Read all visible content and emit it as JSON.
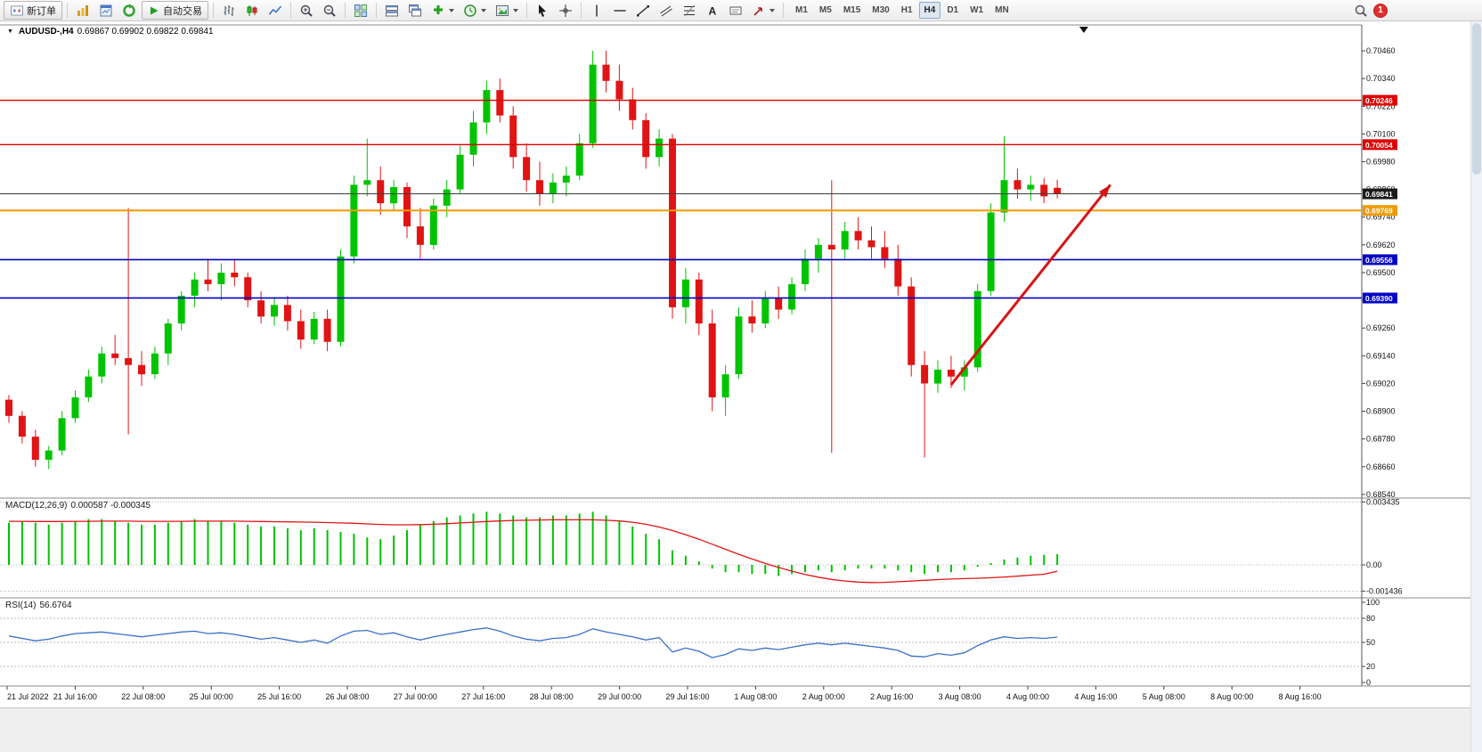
{
  "toolbar": {
    "new_order_label": "新订单",
    "autotrading_label": "自动交易",
    "text_tool_glyph": "A",
    "timeframes": [
      "M1",
      "M5",
      "M15",
      "M30",
      "H1",
      "H4",
      "D1",
      "W1",
      "MN"
    ],
    "active_timeframe": "H4",
    "notification_count": "1"
  },
  "chart": {
    "dropdown_glyph": "▼",
    "symbol_period": "AUDUSD-,H4",
    "ohlc": "0.69867 0.69902 0.69822 0.69841"
  },
  "chart_data": [
    {
      "type": "candlestick",
      "title": "AUDUSD-,H4",
      "ohlc_current": [
        0.69867,
        0.69902,
        0.69822,
        0.69841
      ],
      "ylim": [
        0.68528,
        0.70572
      ],
      "y_axis": [
        "0.70460",
        "0.70340",
        "0.70220",
        "0.70100",
        "0.69980",
        "0.69860",
        "0.69740",
        "0.69620",
        "0.69500",
        "0.69380",
        "0.69260",
        "0.69140",
        "0.69020",
        "0.68900",
        "0.68780",
        "0.68660",
        "0.68540"
      ],
      "time_labels": [
        "21 Jul 2022",
        "21 Jul 16:00",
        "22 Jul 08:00",
        "25 Jul 00:00",
        "25 Jul 16:00",
        "26 Jul 08:00",
        "27 Jul 00:00",
        "27 Jul 16:00",
        "28 Jul 08:00",
        "29 Jul 00:00",
        "29 Jul 16:00",
        "1 Aug 08:00",
        "2 Aug 00:00",
        "2 Aug 16:00",
        "3 Aug 08:00",
        "4 Aug 00:00",
        "4 Aug 16:00",
        "5 Aug 08:00",
        "8 Aug 00:00",
        "8 Aug 16:00"
      ],
      "colors": {
        "bull": "#00c300",
        "bear": "#e01414"
      },
      "candles": [
        [
          0.6895,
          0.6897,
          0.6885,
          0.6888
        ],
        [
          0.6888,
          0.689,
          0.6876,
          0.6879
        ],
        [
          0.6879,
          0.6882,
          0.6866,
          0.6869
        ],
        [
          0.6869,
          0.6875,
          0.6865,
          0.6873
        ],
        [
          0.6873,
          0.689,
          0.6871,
          0.6887
        ],
        [
          0.6887,
          0.6899,
          0.6885,
          0.6896
        ],
        [
          0.6896,
          0.6908,
          0.6894,
          0.6905
        ],
        [
          0.6905,
          0.6918,
          0.6902,
          0.6915
        ],
        [
          0.6915,
          0.6923,
          0.691,
          0.6913
        ],
        [
          0.6913,
          0.6978,
          0.688,
          0.691
        ],
        [
          0.691,
          0.6916,
          0.6901,
          0.6906
        ],
        [
          0.6906,
          0.6918,
          0.6904,
          0.6915
        ],
        [
          0.6915,
          0.693,
          0.691,
          0.6928
        ],
        [
          0.6928,
          0.6942,
          0.6925,
          0.694
        ],
        [
          0.694,
          0.695,
          0.6935,
          0.6947
        ],
        [
          0.6947,
          0.6956,
          0.6942,
          0.6945
        ],
        [
          0.6945,
          0.6954,
          0.6938,
          0.695
        ],
        [
          0.695,
          0.6956,
          0.6944,
          0.6948
        ],
        [
          0.6948,
          0.695,
          0.6935,
          0.6938
        ],
        [
          0.6938,
          0.6942,
          0.6928,
          0.6931
        ],
        [
          0.6931,
          0.6939,
          0.6927,
          0.6936
        ],
        [
          0.6936,
          0.694,
          0.6925,
          0.6929
        ],
        [
          0.6929,
          0.6934,
          0.6917,
          0.6921
        ],
        [
          0.6921,
          0.6933,
          0.6919,
          0.693
        ],
        [
          0.693,
          0.6934,
          0.6916,
          0.692
        ],
        [
          0.692,
          0.696,
          0.6918,
          0.6957
        ],
        [
          0.6957,
          0.6992,
          0.6954,
          0.6988
        ],
        [
          0.6988,
          0.7008,
          0.6983,
          0.699
        ],
        [
          0.699,
          0.6996,
          0.6975,
          0.698
        ],
        [
          0.698,
          0.699,
          0.6977,
          0.6987
        ],
        [
          0.6987,
          0.6989,
          0.6965,
          0.697
        ],
        [
          0.697,
          0.6978,
          0.6956,
          0.6962
        ],
        [
          0.6962,
          0.6982,
          0.696,
          0.6979
        ],
        [
          0.6979,
          0.699,
          0.6974,
          0.6986
        ],
        [
          0.6986,
          0.7005,
          0.6984,
          0.7001
        ],
        [
          0.7001,
          0.702,
          0.6996,
          0.7015
        ],
        [
          0.7015,
          0.7033,
          0.701,
          0.7029
        ],
        [
          0.7029,
          0.7034,
          0.7015,
          0.7018
        ],
        [
          0.7018,
          0.7022,
          0.6995,
          0.7
        ],
        [
          0.7,
          0.7006,
          0.6985,
          0.699
        ],
        [
          0.699,
          0.6998,
          0.6979,
          0.6984
        ],
        [
          0.6984,
          0.6993,
          0.698,
          0.6989
        ],
        [
          0.6989,
          0.6996,
          0.6983,
          0.6992
        ],
        [
          0.6992,
          0.701,
          0.699,
          0.7006
        ],
        [
          0.7006,
          0.7046,
          0.7004,
          0.704
        ],
        [
          0.704,
          0.7046,
          0.7028,
          0.7033
        ],
        [
          0.7033,
          0.704,
          0.702,
          0.7025
        ],
        [
          0.7025,
          0.703,
          0.7012,
          0.7016
        ],
        [
          0.7016,
          0.7019,
          0.6995,
          0.7
        ],
        [
          0.7,
          0.7012,
          0.6996,
          0.7008
        ],
        [
          0.7008,
          0.701,
          0.693,
          0.6935
        ],
        [
          0.6935,
          0.6952,
          0.6928,
          0.6947
        ],
        [
          0.6947,
          0.695,
          0.6923,
          0.6928
        ],
        [
          0.6928,
          0.6934,
          0.689,
          0.6896
        ],
        [
          0.6896,
          0.691,
          0.6888,
          0.6906
        ],
        [
          0.6906,
          0.6935,
          0.6904,
          0.6931
        ],
        [
          0.6931,
          0.6938,
          0.6924,
          0.6928
        ],
        [
          0.6928,
          0.6942,
          0.6926,
          0.6939
        ],
        [
          0.6939,
          0.6944,
          0.693,
          0.6934
        ],
        [
          0.6934,
          0.6948,
          0.6932,
          0.6945
        ],
        [
          0.6945,
          0.696,
          0.6942,
          0.6956
        ],
        [
          0.6956,
          0.6965,
          0.695,
          0.6962
        ],
        [
          0.6962,
          0.699,
          0.6872,
          0.696
        ],
        [
          0.696,
          0.6972,
          0.6956,
          0.6968
        ],
        [
          0.6968,
          0.6974,
          0.696,
          0.6964
        ],
        [
          0.6964,
          0.697,
          0.6956,
          0.6961
        ],
        [
          0.6961,
          0.6968,
          0.6952,
          0.6956
        ],
        [
          0.6956,
          0.6962,
          0.694,
          0.6944
        ],
        [
          0.6944,
          0.6948,
          0.6905,
          0.691
        ],
        [
          0.691,
          0.6916,
          0.687,
          0.6902
        ],
        [
          0.6902,
          0.6912,
          0.6898,
          0.6908
        ],
        [
          0.6908,
          0.6914,
          0.69,
          0.6905
        ],
        [
          0.6905,
          0.6912,
          0.6899,
          0.6909
        ],
        [
          0.6909,
          0.6945,
          0.6907,
          0.6942
        ],
        [
          0.6942,
          0.698,
          0.694,
          0.6976
        ],
        [
          0.6976,
          0.7009,
          0.6972,
          0.699
        ],
        [
          0.699,
          0.6995,
          0.6982,
          0.6986
        ],
        [
          0.6986,
          0.6992,
          0.6981,
          0.6988
        ],
        [
          0.6988,
          0.6991,
          0.698,
          0.6983
        ],
        [
          0.69867,
          0.69902,
          0.69822,
          0.69841
        ]
      ],
      "hlines": [
        {
          "price": 0.70246,
          "color": "#e00000",
          "width": 1.4,
          "label": "0.70246",
          "label_bg": "#e00000"
        },
        {
          "price": 0.70054,
          "color": "#e00000",
          "width": 1.4,
          "label": "0.70054",
          "label_bg": "#e00000"
        },
        {
          "price": 0.69841,
          "color": "#3c3c3c",
          "width": 1,
          "label": "0.69841",
          "label_bg": "#1a1a1a"
        },
        {
          "price": 0.69769,
          "color": "#ef9b00",
          "width": 2,
          "label": "0.69769",
          "label_bg": "#ef9b00"
        },
        {
          "price": 0.69556,
          "color": "#0000c8",
          "width": 1.6,
          "label": "0.69556",
          "label_bg": "#0000c8"
        },
        {
          "price": 0.6939,
          "color": "#0000c8",
          "width": 1.6,
          "label": "0.69390",
          "label_bg": "#0000c8"
        }
      ],
      "arrow": {
        "from_index": 71,
        "from_price": 0.69014,
        "to_index": 83,
        "to_price": 0.6988,
        "color": "#d61515"
      },
      "shift_marker_index": 81
    },
    {
      "type": "bar",
      "name": "MACD(12,26,9)",
      "values_text": "0.000587 -0.000345",
      "ylim": [
        -0.00175,
        0.0036
      ],
      "axis": [
        {
          "label": "0.003435",
          "value": 0.003435
        },
        {
          "label": "0.00",
          "value": 0
        },
        {
          "label": "-0.001436",
          "value": -0.001436
        }
      ],
      "colors": {
        "histogram": "#00c300",
        "signal": "#e01414"
      },
      "histogram": [
        0.0023,
        0.0024,
        0.0023,
        0.0022,
        0.0023,
        0.0024,
        0.0025,
        0.0025,
        0.0024,
        0.0023,
        0.0022,
        0.0022,
        0.0023,
        0.0024,
        0.0025,
        0.0024,
        0.0024,
        0.0023,
        0.0022,
        0.0021,
        0.0021,
        0.002,
        0.0019,
        0.002,
        0.0019,
        0.0018,
        0.0017,
        0.0015,
        0.0014,
        0.0016,
        0.0019,
        0.0022,
        0.0024,
        0.0026,
        0.0027,
        0.0028,
        0.0029,
        0.0028,
        0.0027,
        0.0026,
        0.0026,
        0.0027,
        0.0027,
        0.0028,
        0.0029,
        0.0027,
        0.0024,
        0.0021,
        0.0017,
        0.0014,
        0.0008,
        0.0005,
        0.0002,
        -0.0002,
        -0.0004,
        -0.0004,
        -0.0005,
        -0.0005,
        -0.0006,
        -0.0005,
        -0.0004,
        -0.0003,
        -0.0004,
        -0.0003,
        -0.0002,
        -0.0002,
        -0.0002,
        -0.0003,
        -0.0004,
        -0.0005,
        -0.0004,
        -0.0004,
        -0.0003,
        -0.0001,
        0.0001,
        0.0003,
        0.0004,
        0.0005,
        0.00055,
        0.000587
      ],
      "signal": [
        0.00238,
        0.00238,
        0.00237,
        0.00237,
        0.00237,
        0.00238,
        0.00238,
        0.00239,
        0.00239,
        0.00239,
        0.00238,
        0.00238,
        0.00238,
        0.00238,
        0.00239,
        0.00239,
        0.00239,
        0.00239,
        0.00238,
        0.00237,
        0.00236,
        0.00235,
        0.00234,
        0.00233,
        0.00231,
        0.00229,
        0.00227,
        0.00224,
        0.00221,
        0.00219,
        0.00219,
        0.0022,
        0.00222,
        0.00225,
        0.00229,
        0.00233,
        0.00237,
        0.0024,
        0.00243,
        0.00244,
        0.00245,
        0.00246,
        0.00246,
        0.00246,
        0.00246,
        0.00244,
        0.0024,
        0.00233,
        0.00222,
        0.00207,
        0.00188,
        0.00165,
        0.0014,
        0.00113,
        0.00085,
        0.00058,
        0.00032,
        8e-05,
        -0.00014,
        -0.00034,
        -0.00052,
        -0.00067,
        -0.00079,
        -0.00088,
        -0.00094,
        -0.00096,
        -0.00095,
        -0.00092,
        -0.00088,
        -0.00084,
        -0.0008,
        -0.00077,
        -0.00075,
        -0.00073,
        -0.0007,
        -0.00066,
        -0.00061,
        -0.00056,
        -0.00051,
        -0.000345
      ]
    },
    {
      "type": "line",
      "name": "RSI(14)",
      "value_text": "56.6764",
      "ylim": [
        0,
        100
      ],
      "levels": [
        80,
        50,
        20
      ],
      "axis": [
        {
          "label": "100",
          "value": 100
        },
        {
          "label": "80",
          "value": 80
        },
        {
          "label": "50",
          "value": 50
        },
        {
          "label": "20",
          "value": 20
        },
        {
          "label": "0",
          "value": 0
        }
      ],
      "color": "#3a6fc8",
      "values": [
        58,
        55,
        52,
        54,
        58,
        61,
        62,
        63,
        61,
        59,
        57,
        59,
        61,
        63,
        64,
        61,
        62,
        60,
        57,
        54,
        56,
        53,
        50,
        53,
        49,
        58,
        64,
        65,
        60,
        62,
        57,
        53,
        57,
        60,
        63,
        66,
        68,
        64,
        58,
        54,
        52,
        55,
        56,
        60,
        67,
        63,
        60,
        57,
        53,
        56,
        38,
        43,
        39,
        31,
        35,
        42,
        40,
        43,
        41,
        44,
        47,
        49,
        47,
        49,
        47,
        45,
        43,
        40,
        33,
        32,
        36,
        34,
        37,
        46,
        53,
        57,
        55,
        56,
        55,
        56.6764
      ]
    }
  ]
}
